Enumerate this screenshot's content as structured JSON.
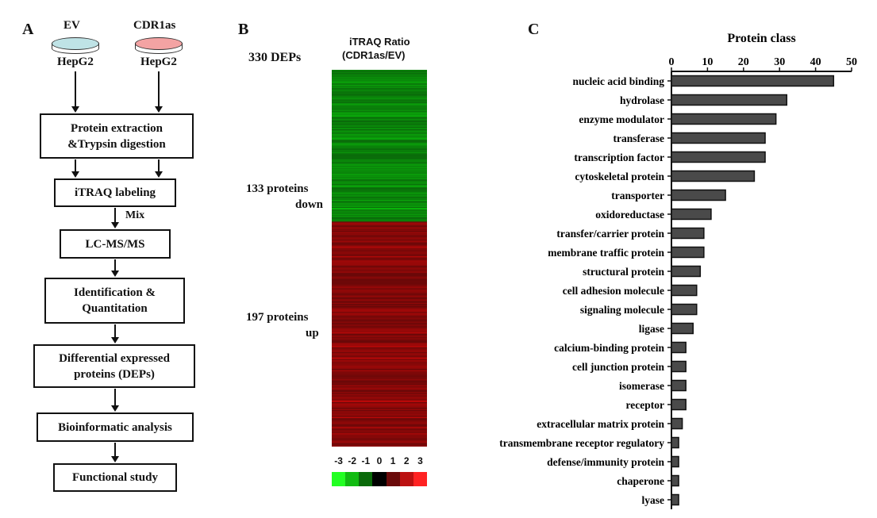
{
  "panels": {
    "a": {
      "label": "A",
      "ev_label": "EV",
      "cdr_label": "CDR1as",
      "cell_line_left": "HepG2",
      "cell_line_right": "HepG2",
      "steps": [
        "Protein extraction\n&Trypsin digestion",
        "iTRAQ labeling",
        "LC-MS/MS",
        "Identification &\nQuantitation",
        "Differential expressed\nproteins (DEPs)",
        "Bioinformatic analysis",
        "Functional study"
      ],
      "mix_label": "Mix",
      "colors": {
        "ev_dish": "#bfe3e6",
        "cdr_dish": "#f3a3a3"
      }
    },
    "b": {
      "label": "B",
      "total": "330 DEPs",
      "title_line1": "iTRAQ Ratio",
      "title_line2": "(CDR1as/EV)",
      "down_line1": "133 proteins",
      "down_line2": "down",
      "up_line1": "197 proteins",
      "up_line2": "up",
      "down_count": 133,
      "up_count": 197,
      "scale_ticks": [
        "-3",
        "-2",
        "-1",
        "0",
        "1",
        "2",
        "3"
      ],
      "scale_colors": [
        "#22ff22",
        "#11bb11",
        "#0a6a0a",
        "#000000",
        "#6a0a0a",
        "#bb1111",
        "#ff2222"
      ]
    },
    "c": {
      "label": "C"
    }
  },
  "chart_data": {
    "type": "bar",
    "orientation": "horizontal",
    "title": "Protein class",
    "xlim": [
      0,
      50
    ],
    "xticks": [
      "0",
      "10",
      "20",
      "30",
      "40",
      "50"
    ],
    "categories": [
      "nucleic acid binding",
      "hydrolase",
      "enzyme modulator",
      "transferase",
      "transcription factor",
      "cytoskeletal protein",
      "transporter",
      "oxidoreductase",
      "transfer/carrier protein",
      "membrane traffic protein",
      "structural protein",
      "cell adhesion molecule",
      "signaling molecule",
      "ligase",
      "calcium-binding protein",
      "cell junction protein",
      "isomerase",
      "receptor",
      "extracellular matrix protein",
      "transmembrane receptor regulatory",
      "defense/immunity protein",
      "chaperone",
      "lyase"
    ],
    "values": [
      45,
      32,
      29,
      26,
      26,
      23,
      15,
      11,
      9,
      9,
      8,
      7,
      7,
      6,
      4,
      4,
      4,
      4,
      3,
      2,
      2,
      2,
      2
    ],
    "bar_color": "#4a4a4a"
  }
}
